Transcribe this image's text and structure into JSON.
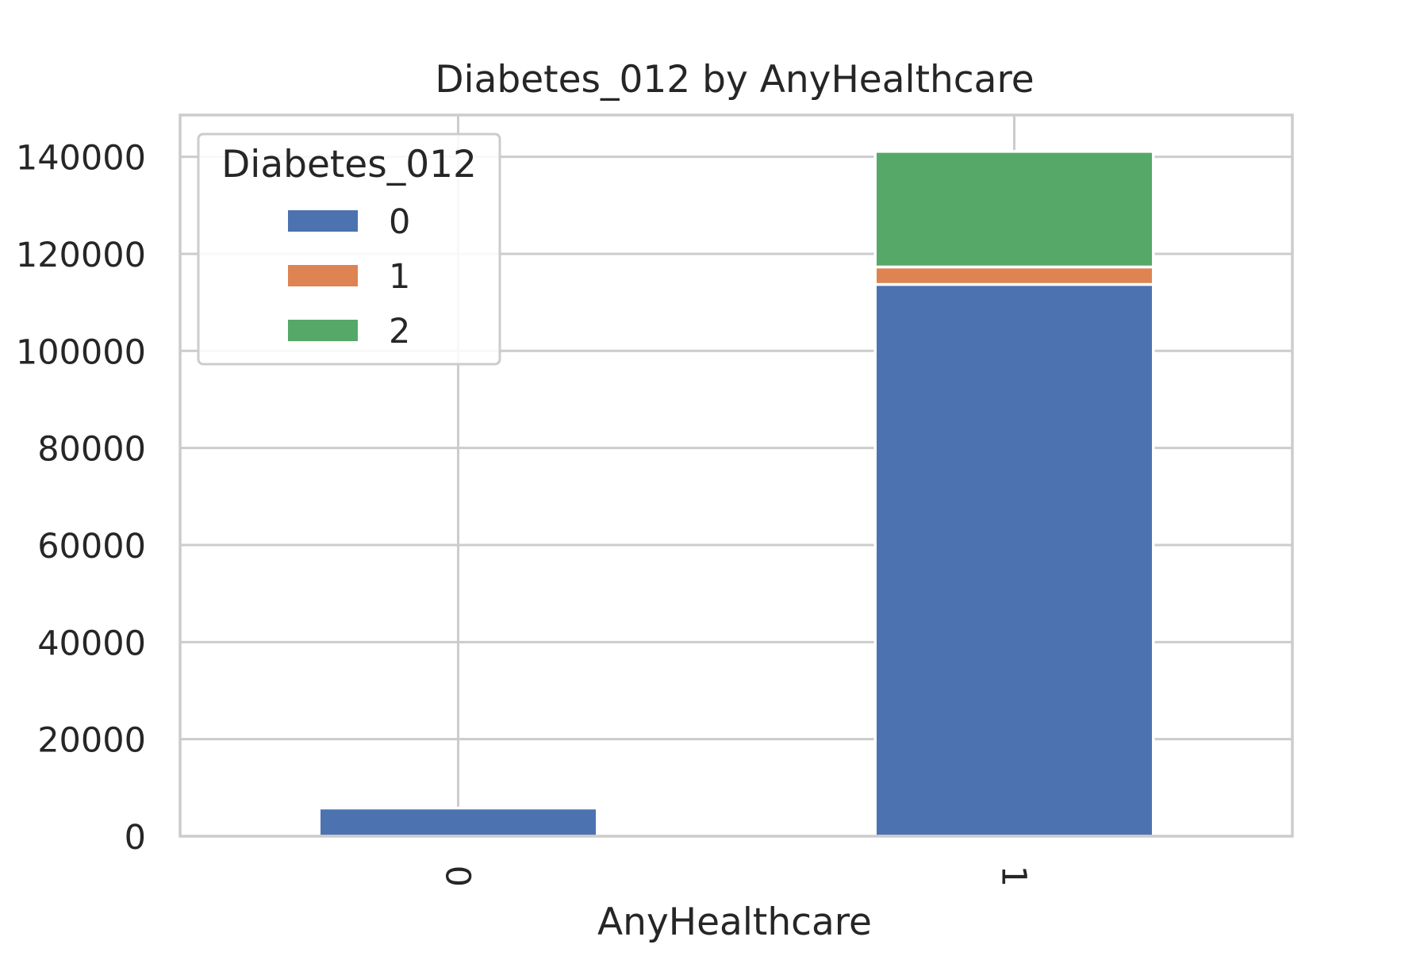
{
  "chart_data": {
    "type": "bar",
    "stacked": true,
    "title": "Diabetes_012 by AnyHealthcare",
    "xlabel": "AnyHealthcare",
    "ylabel": "",
    "categories": [
      "0",
      "1"
    ],
    "ylim": [
      0,
      148600
    ],
    "yticks": [
      0,
      20000,
      40000,
      60000,
      80000,
      100000,
      120000,
      140000
    ],
    "ytick_labels": [
      "0",
      "20000",
      "40000",
      "60000",
      "80000",
      "100000",
      "120000",
      "140000"
    ],
    "grid": true,
    "legend": {
      "title": "Diabetes_012",
      "position": "top-left"
    },
    "series": [
      {
        "name": "0",
        "color": "#4c72b0",
        "values": [
          5800,
          113700
        ]
      },
      {
        "name": "1",
        "color": "#dd8452",
        "values": [
          0,
          3600
        ]
      },
      {
        "name": "2",
        "color": "#55a868",
        "values": [
          0,
          23800
        ]
      }
    ]
  }
}
